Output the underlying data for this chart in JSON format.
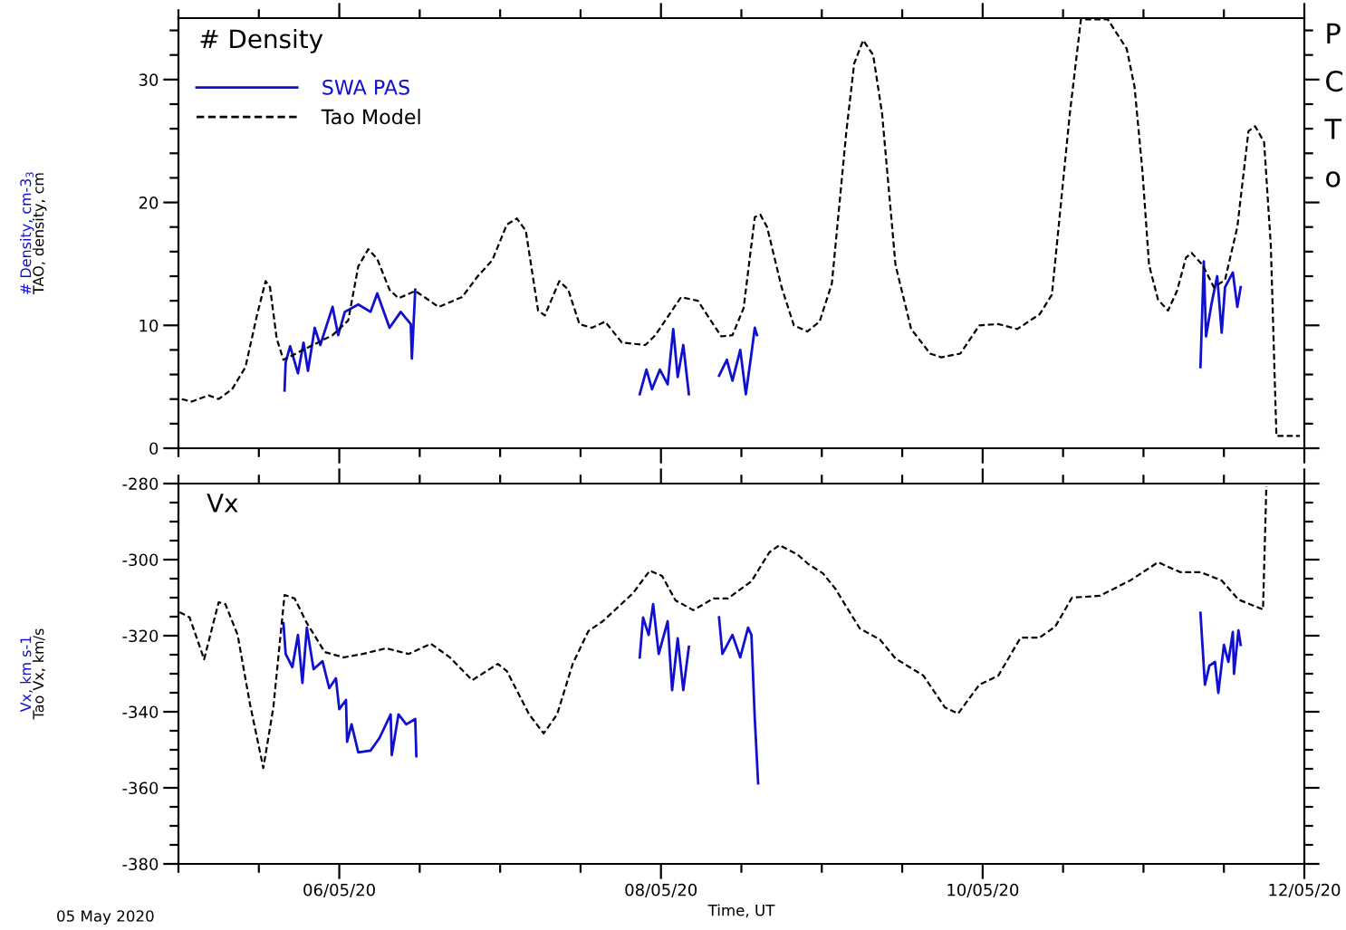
{
  "chart_data": [
    {
      "type": "line",
      "title": "# Density",
      "ylabel": "# Density, cm-3$_{3}$\nTAO, density, cm",
      "legend": "top left",
      "tick_labels": "y",
      "annotations": [
        "P\nC\nT\no"
      ],
      "xlim": [
        "2020-05-05",
        "2020-05-12"
      ],
      "ylim": [
        0,
        35
      ],
      "yticks": [
        0,
        {
          "value": 2,
          "label": null
        },
        {
          "value": 4,
          "label": null
        },
        {
          "value": 6,
          "label": null
        },
        {
          "value": 8,
          "label": null
        },
        10,
        {
          "value": 12,
          "label": null
        },
        {
          "value": 14,
          "label": null
        },
        {
          "value": 16,
          "label": null
        },
        {
          "value": 18,
          "label": null
        },
        20,
        {
          "value": 22,
          "label": null
        },
        {
          "value": 24,
          "label": null
        },
        {
          "value": 26,
          "label": null
        },
        {
          "value": 28,
          "label": null
        },
        30,
        {
          "value": 32,
          "label": null
        },
        {
          "value": 34,
          "label": null
        }
      ],
      "series": [
        {
          "name": "SWA PAS",
          "color": "#1010d0",
          "line_style": "solid",
          "x": [
            "2020-05-05T15:50",
            "2020-05-05T16:00",
            "2020-05-05T16:40",
            "2020-05-05T17:50",
            "2020-05-05T18:40",
            "2020-05-05T19:20",
            "2020-05-05T20:20",
            "2020-05-05T21:10",
            "2020-05-05T23:00",
            "2020-05-05T23:50",
            "2020-05-06T00:50",
            "2020-05-06T02:50",
            "2020-05-06T04:40",
            "2020-05-06T05:40",
            "2020-05-06T07:30",
            "2020-05-06T09:10",
            "2020-05-06T10:40",
            "2020-05-06T10:50",
            "2020-05-06T11:20",
            "2020-05-07T12:00",
            "2020-05-07T20:50",
            "2020-05-07T21:50",
            "2020-05-07T22:40",
            "2020-05-07T23:50",
            "2020-05-08T01:00",
            "2020-05-08T01:50",
            "2020-05-08T02:30",
            "2020-05-08T03:20",
            "2020-05-08T04:10",
            "2020-05-08T06:00",
            "2020-05-08T08:40",
            "2020-05-08T09:50",
            "2020-05-08T10:40",
            "2020-05-08T11:50",
            "2020-05-08T12:40",
            "2020-05-08T13:30",
            "2020-05-08T14:00",
            "2020-05-08T14:20",
            "2020-05-10T00:00",
            "2020-05-11T08:30",
            "2020-05-11T09:00",
            "2020-05-11T09:20",
            "2020-05-11T10:10",
            "2020-05-11T11:00",
            "2020-05-11T11:40",
            "2020-05-11T12:10",
            "2020-05-11T13:20",
            "2020-05-11T14:00",
            "2020-05-11T14:30"
          ],
          "values": [
            4.7,
            7.0,
            8.3,
            6.1,
            8.6,
            6.3,
            9.8,
            8.4,
            11.5,
            9.2,
            11.1,
            11.7,
            11.1,
            12.6,
            9.8,
            11.1,
            10.1,
            7.3,
            12.9,
            null,
            4.4,
            6.4,
            4.8,
            6.4,
            5.2,
            9.7,
            5.8,
            8.4,
            4.4,
            null,
            5.9,
            7.2,
            5.5,
            8.0,
            4.4,
            7.7,
            9.8,
            9.2,
            null,
            6.6,
            15.2,
            9.1,
            11.8,
            14.0,
            9.4,
            13.1,
            14.3,
            11.5,
            13.1
          ]
        },
        {
          "name": "Tao Model",
          "color": "#000000",
          "line_style": "dashed",
          "x": [
            "2020-05-05T00:30",
            "2020-05-05T02:00",
            "2020-05-05T04:30",
            "2020-05-05T06:00",
            "2020-05-05T08:00",
            "2020-05-05T10:00",
            "2020-05-05T11:40",
            "2020-05-05T13:00",
            "2020-05-05T13:40",
            "2020-05-05T14:40",
            "2020-05-05T15:40",
            "2020-05-05T23:00",
            "2020-05-06T01:20",
            "2020-05-06T02:50",
            "2020-05-06T04:20",
            "2020-05-06T05:40",
            "2020-05-06T07:30",
            "2020-05-06T08:50",
            "2020-05-06T11:20",
            "2020-05-06T14:50",
            "2020-05-06T18:20",
            "2020-05-06T20:40",
            "2020-05-06T22:50",
            "2020-05-07T01:00",
            "2020-05-07T02:30",
            "2020-05-07T03:50",
            "2020-05-07T05:40",
            "2020-05-07T06:40",
            "2020-05-07T08:50",
            "2020-05-07T10:10",
            "2020-05-07T11:50",
            "2020-05-07T13:40",
            "2020-05-07T15:40",
            "2020-05-07T18:10",
            "2020-05-07T21:40",
            "2020-05-07T23:10",
            "2020-05-08T03:00",
            "2020-05-08T05:30",
            "2020-05-08T09:00",
            "2020-05-08T10:40",
            "2020-05-08T12:20",
            "2020-05-08T14:00",
            "2020-05-08T14:50",
            "2020-05-08T15:50",
            "2020-05-08T18:00",
            "2020-05-08T19:50",
            "2020-05-08T21:50",
            "2020-05-08T23:40",
            "2020-05-09T01:30",
            "2020-05-09T03:40",
            "2020-05-09T04:50",
            "2020-05-09T06:10",
            "2020-05-09T07:40",
            "2020-05-09T09:00",
            "2020-05-09T11:00",
            "2020-05-09T13:20",
            "2020-05-09T16:10",
            "2020-05-09T17:50",
            "2020-05-09T20:40",
            "2020-05-09T23:30",
            "2020-05-10T02:20",
            "2020-05-10T05:10",
            "2020-05-10T08:30",
            "2020-05-10T10:20",
            "2020-05-10T11:20",
            "2020-05-10T13:00",
            "2020-05-10T14:40",
            "2020-05-10T18:40",
            "2020-05-10T21:30",
            "2020-05-10T22:40",
            "2020-05-10T23:50",
            "2020-05-11T00:50",
            "2020-05-11T02:10",
            "2020-05-11T03:40",
            "2020-05-11T05:00",
            "2020-05-11T06:20",
            "2020-05-11T07:10",
            "2020-05-11T08:50",
            "2020-05-11T10:30",
            "2020-05-11T12:10",
            "2020-05-11T14:00",
            "2020-05-11T15:40",
            "2020-05-11T16:40",
            "2020-05-11T18:00",
            "2020-05-11T19:00",
            "2020-05-11T19:50",
            "2020-05-11T23:20"
          ],
          "values": [
            4.0,
            3.8,
            4.3,
            4.0,
            4.8,
            6.6,
            10.7,
            13.6,
            13.1,
            8.9,
            7.2,
            9.2,
            10.4,
            14.8,
            16.2,
            15.4,
            12.9,
            12.2,
            12.8,
            11.5,
            12.3,
            14.0,
            15.3,
            18.2,
            18.7,
            17.7,
            11.2,
            10.8,
            13.6,
            12.9,
            10.1,
            9.8,
            10.3,
            8.6,
            8.4,
            9.2,
            12.3,
            12.0,
            9.1,
            9.2,
            11.4,
            18.8,
            19.0,
            18.0,
            13.1,
            10.0,
            9.5,
            10.3,
            13.4,
            25.8,
            31.3,
            33.2,
            32.0,
            27.2,
            14.9,
            9.7,
            7.7,
            7.4,
            7.7,
            10.0,
            10.1,
            9.7,
            10.9,
            12.5,
            18.0,
            27.2,
            34.9,
            34.9,
            32.5,
            29.4,
            22.6,
            14.9,
            12.1,
            11.2,
            12.8,
            15.5,
            15.9,
            14.9,
            13.1,
            13.7,
            18.0,
            25.8,
            26.2,
            24.9,
            16.5,
            1.0,
            1.0
          ]
        }
      ]
    },
    {
      "type": "line",
      "title": "Vx",
      "ylabel": "Vx, km s-1\nTao Vx, km/s",
      "xlabel": "Time, UT",
      "legend": false,
      "annotations": [
        "05 May 2020"
      ],
      "xlim": [
        "2020-05-05",
        "2020-05-12"
      ],
      "xticks": [
        {
          "value": "2020-05-05",
          "label": null
        },
        {
          "value": "2020-05-05T12:00",
          "label": null
        },
        {
          "value": "2020-05-06",
          "label": "06/05/20"
        },
        {
          "value": "2020-05-06T12:00",
          "label": null
        },
        {
          "value": "2020-05-07",
          "label": null
        },
        {
          "value": "2020-05-07T12:00",
          "label": null
        },
        {
          "value": "2020-05-08",
          "label": "08/05/20"
        },
        {
          "value": "2020-05-08T12:00",
          "label": null
        },
        {
          "value": "2020-05-09",
          "label": null
        },
        {
          "value": "2020-05-09T12:00",
          "label": null
        },
        {
          "value": "2020-05-10",
          "label": "10/05/20"
        },
        {
          "value": "2020-05-10T12:00",
          "label": null
        },
        {
          "value": "2020-05-11",
          "label": null
        },
        {
          "value": "2020-05-11T12:00",
          "label": null
        },
        {
          "value": "2020-05-12",
          "label": "12/05/20"
        }
      ],
      "ylim": [
        -380,
        -280
      ],
      "yticks": [
        -380,
        {
          "value": -375,
          "label": null
        },
        {
          "value": -370,
          "label": null
        },
        {
          "value": -365,
          "label": null
        },
        -360,
        {
          "value": -355,
          "label": null
        },
        {
          "value": -350,
          "label": null
        },
        {
          "value": -345,
          "label": null
        },
        -340,
        {
          "value": -335,
          "label": null
        },
        {
          "value": -330,
          "label": null
        },
        {
          "value": -325,
          "label": null
        },
        -320,
        {
          "value": -315,
          "label": null
        },
        {
          "value": -310,
          "label": null
        },
        {
          "value": -305,
          "label": null
        },
        -300,
        {
          "value": -295,
          "label": null
        },
        {
          "value": -290,
          "label": null
        },
        {
          "value": -285,
          "label": null
        },
        -280
      ],
      "series": [
        {
          "color": "#1010d0",
          "line_style": "solid",
          "x": [
            "2020-05-05T15:40",
            "2020-05-05T16:00",
            "2020-05-05T17:00",
            "2020-05-05T17:50",
            "2020-05-05T18:30",
            "2020-05-05T19:10",
            "2020-05-05T20:10",
            "2020-05-05T21:30",
            "2020-05-05T22:30",
            "2020-05-05T23:30",
            "2020-05-06T00:00",
            "2020-05-06T01:00",
            "2020-05-06T01:10",
            "2020-05-06T01:50",
            "2020-05-06T02:50",
            "2020-05-06T04:40",
            "2020-05-06T06:00",
            "2020-05-06T07:40",
            "2020-05-06T07:50",
            "2020-05-06T08:50",
            "2020-05-06T10:00",
            "2020-05-06T11:20",
            "2020-05-06T11:30",
            "2020-05-07T12:00",
            "2020-05-07T20:50",
            "2020-05-07T21:20",
            "2020-05-07T22:10",
            "2020-05-07T22:50",
            "2020-05-07T23:40",
            "2020-05-08T01:00",
            "2020-05-08T01:40",
            "2020-05-08T02:30",
            "2020-05-08T03:20",
            "2020-05-08T04:10",
            "2020-05-08T06:00",
            "2020-05-08T08:40",
            "2020-05-08T09:10",
            "2020-05-08T10:40",
            "2020-05-08T11:50",
            "2020-05-08T13:00",
            "2020-05-08T13:30",
            "2020-05-08T14:00",
            "2020-05-08T14:30",
            "2020-05-10T00:00",
            "2020-05-11T08:30",
            "2020-05-11T09:10",
            "2020-05-11T09:50",
            "2020-05-11T10:40",
            "2020-05-11T11:10",
            "2020-05-11T12:00",
            "2020-05-11T12:40",
            "2020-05-11T13:20",
            "2020-05-11T13:30",
            "2020-05-11T14:10",
            "2020-05-11T14:30"
          ],
          "values": [
            -316.7,
            -324.8,
            -328.3,
            -319.8,
            -332.4,
            -317.9,
            -328.8,
            -326.7,
            -333.8,
            -331.2,
            -339.3,
            -336.9,
            -347.9,
            -343.3,
            -350.7,
            -350.2,
            -346.9,
            -340.7,
            -351.4,
            -340.7,
            -343.3,
            -341.9,
            -351.7,
            null,
            -325.7,
            -315.2,
            -319.8,
            -311.7,
            -324.8,
            -316.2,
            -334.3,
            -320.7,
            -334.3,
            -322.9,
            null,
            -315.2,
            -324.8,
            -319.8,
            -325.7,
            -317.9,
            -319.8,
            -341.9,
            -358.8,
            null,
            -314.0,
            -332.9,
            -327.9,
            -326.9,
            -335.0,
            -322.4,
            -326.9,
            -319.0,
            -330.0,
            -318.6,
            -322.4
          ]
        },
        {
          "color": "#000000",
          "line_style": "dashed",
          "x": [
            "2020-05-05T00:10",
            "2020-05-05T01:40",
            "2020-05-05T03:50",
            "2020-05-05T06:00",
            "2020-05-05T07:00",
            "2020-05-05T08:50",
            "2020-05-05T10:40",
            "2020-05-05T12:40",
            "2020-05-05T14:10",
            "2020-05-05T15:50",
            "2020-05-05T17:20",
            "2020-05-05T19:10",
            "2020-05-05T21:50",
            "2020-05-06T00:40",
            "2020-05-06T03:30",
            "2020-05-06T07:00",
            "2020-05-06T10:20",
            "2020-05-06T13:40",
            "2020-05-06T16:30",
            "2020-05-06T19:50",
            "2020-05-06T23:40",
            "2020-05-07T01:00",
            "2020-05-07T04:20",
            "2020-05-07T06:30",
            "2020-05-07T08:30",
            "2020-05-07T10:50",
            "2020-05-07T13:10",
            "2020-05-07T15:20",
            "2020-05-07T19:50",
            "2020-05-07T22:20",
            "2020-05-08T00:10",
            "2020-05-08T02:10",
            "2020-05-08T04:50",
            "2020-05-08T07:50",
            "2020-05-08T10:00",
            "2020-05-08T13:30",
            "2020-05-08T16:10",
            "2020-05-08T17:40",
            "2020-05-08T20:20",
            "2020-05-08T22:00",
            "2020-05-09T00:10",
            "2020-05-09T02:00",
            "2020-05-09T05:40",
            "2020-05-09T08:40",
            "2020-05-09T11:00",
            "2020-05-09T15:10",
            "2020-05-09T18:20",
            "2020-05-09T20:20",
            "2020-05-09T23:30",
            "2020-05-10T02:20",
            "2020-05-10T05:40",
            "2020-05-10T08:30",
            "2020-05-10T10:50",
            "2020-05-10T13:20",
            "2020-05-10T17:30",
            "2020-05-10T22:00",
            "2020-05-11T02:10",
            "2020-05-11T05:30",
            "2020-05-11T08:30",
            "2020-05-11T11:40",
            "2020-05-11T14:10",
            "2020-05-11T17:50",
            "2020-05-11T18:20"
          ],
          "values": [
            -313.8,
            -315.2,
            -326.2,
            -311.2,
            -311.7,
            -319.8,
            -337.9,
            -354.8,
            -338.8,
            -309.3,
            -310.2,
            -316.7,
            -324.3,
            -325.7,
            -324.8,
            -323.3,
            -324.8,
            -322.1,
            -325.7,
            -331.7,
            -327.4,
            -329.3,
            -340.7,
            -345.7,
            -340.7,
            -327.4,
            -318.8,
            -316.2,
            -308.8,
            -302.9,
            -304.3,
            -310.7,
            -313.3,
            -310.2,
            -310.2,
            -305.7,
            -298.1,
            -296.2,
            -298.6,
            -301.2,
            -303.6,
            -307.6,
            -318.1,
            -321.0,
            -326.0,
            -330.5,
            -338.8,
            -340.5,
            -332.9,
            -330.5,
            -320.5,
            -320.5,
            -317.6,
            -310.0,
            -309.5,
            -305.5,
            -300.7,
            -303.3,
            -303.3,
            -305.5,
            -310.5,
            -313.1,
            -280.7
          ]
        }
      ]
    }
  ]
}
